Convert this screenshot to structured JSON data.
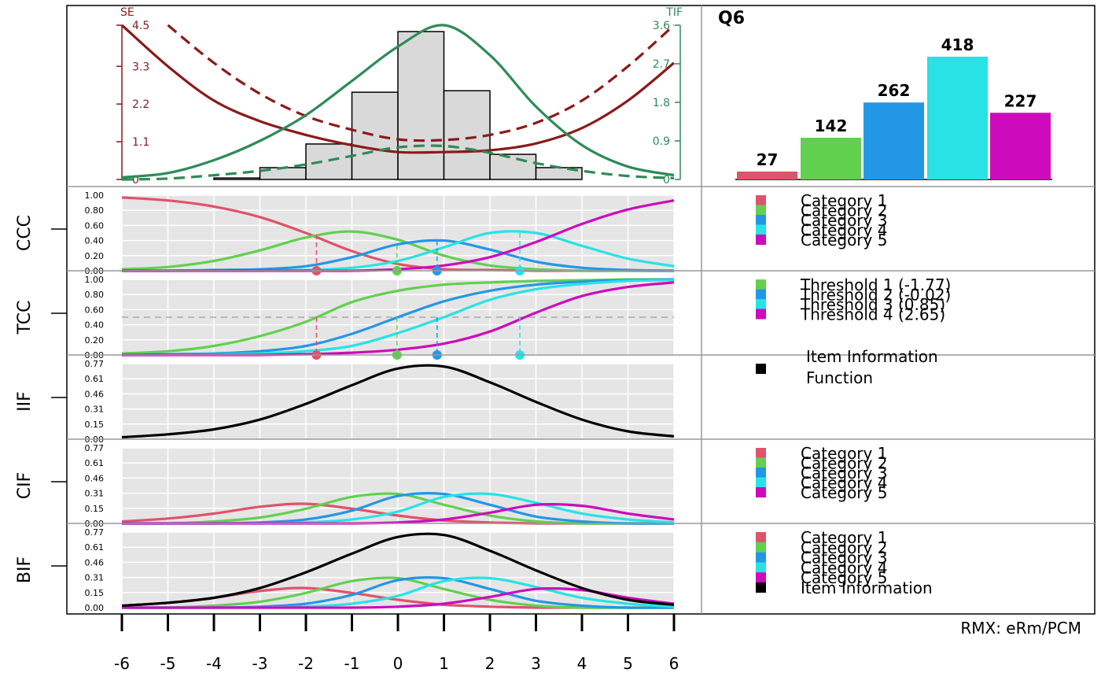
{
  "item_title": "Q6",
  "footer": "RMX: eRm/PCM",
  "colors": {
    "cat1": "#DF536B",
    "cat2": "#61D04F",
    "cat3": "#2297E6",
    "cat4": "#28E2E5",
    "cat5": "#CD0BBC",
    "info": "#000000",
    "se": "#8B1A1A",
    "tif": "#2E8B57",
    "hist_fill": "#D9D9D9",
    "panel_bg": "#E5E5E5"
  },
  "chart_data": [
    {
      "type": "line",
      "id": "top-se-tif",
      "left_axis": {
        "label": "SE",
        "ticks": [
          "0",
          "1.1",
          "2.2",
          "3.3",
          "4.5"
        ],
        "range": [
          0,
          4.5
        ]
      },
      "right_axis": {
        "label": "TIF",
        "ticks": [
          "0",
          "0.9",
          "1.8",
          "2.7",
          "3.6"
        ],
        "range": [
          0,
          3.6
        ]
      },
      "x_range": [
        -6,
        6
      ],
      "histogram": {
        "bins": [
          [
            -4,
            -3
          ],
          [
            -3,
            -2
          ],
          [
            -2,
            -1
          ],
          [
            -1,
            0
          ],
          [
            0,
            1
          ],
          [
            1,
            2
          ],
          [
            2,
            3
          ],
          [
            3,
            4
          ],
          [
            4,
            5
          ]
        ],
        "relative_height": [
          0.01,
          0.08,
          0.24,
          0.59,
          1.0,
          0.6,
          0.17,
          0.08,
          0.0
        ],
        "note_height_axis": "right",
        "max_value": 3.45
      },
      "series": [
        {
          "kind": "se-solid",
          "x": [
            -6,
            -5,
            -4,
            -3,
            -2,
            -1,
            0,
            1,
            2,
            3,
            4,
            5,
            6
          ],
          "y": [
            4.5,
            3.3,
            2.3,
            1.7,
            1.3,
            1.0,
            0.8,
            0.8,
            0.85,
            1.05,
            1.5,
            2.3,
            3.4
          ]
        },
        {
          "kind": "se-dashed",
          "x": [
            -5,
            -4,
            -3,
            -2,
            -1,
            0,
            1,
            2,
            3,
            4,
            5,
            6
          ],
          "y": [
            4.5,
            3.4,
            2.5,
            1.85,
            1.45,
            1.17,
            1.15,
            1.3,
            1.65,
            2.3,
            3.3,
            4.5
          ]
        },
        {
          "kind": "tif-solid",
          "x": [
            -6,
            -5,
            -4,
            -3,
            -2,
            -1,
            0,
            1,
            2,
            3,
            4,
            5,
            6
          ],
          "y": [
            0.05,
            0.15,
            0.45,
            0.9,
            1.5,
            2.3,
            3.1,
            3.6,
            2.9,
            1.7,
            0.8,
            0.3,
            0.1
          ]
        },
        {
          "kind": "tif-dashed",
          "x": [
            -6,
            -5,
            -4,
            -3,
            -2,
            -1,
            0,
            1,
            2,
            3,
            4,
            5,
            6
          ],
          "y": [
            0.0,
            0.02,
            0.1,
            0.2,
            0.35,
            0.55,
            0.75,
            0.78,
            0.62,
            0.38,
            0.2,
            0.08,
            0.03
          ]
        }
      ]
    },
    {
      "type": "bar",
      "id": "category-counts",
      "title": "Q6",
      "categories": [
        "Category 1",
        "Category 2",
        "Category 3",
        "Category 4",
        "Category 5"
      ],
      "values": [
        27,
        142,
        262,
        418,
        227
      ],
      "ylim": [
        0,
        418
      ]
    },
    {
      "type": "line",
      "id": "CCC",
      "label": "CCC",
      "yticks": [
        "1.00",
        "0.80",
        "0.60",
        "0.40",
        "0.20",
        "0.00"
      ],
      "ylim": [
        0,
        1
      ],
      "x": [
        -6,
        -5,
        -4,
        -3,
        -2,
        -1,
        0,
        1,
        2,
        3,
        4,
        5,
        6
      ],
      "series": [
        {
          "name": "Category 1",
          "values": [
            0.97,
            0.93,
            0.85,
            0.71,
            0.5,
            0.26,
            0.09,
            0.02,
            0.01,
            0,
            0,
            0,
            0
          ]
        },
        {
          "name": "Category 2",
          "values": [
            0.02,
            0.05,
            0.13,
            0.27,
            0.44,
            0.52,
            0.41,
            0.2,
            0.07,
            0.02,
            0,
            0,
            0
          ]
        },
        {
          "name": "Category 3",
          "values": [
            0,
            0,
            0.01,
            0.02,
            0.06,
            0.18,
            0.35,
            0.4,
            0.28,
            0.12,
            0.04,
            0.01,
            0
          ]
        },
        {
          "name": "Category 4",
          "values": [
            0,
            0,
            0,
            0,
            0.01,
            0.04,
            0.13,
            0.31,
            0.5,
            0.5,
            0.33,
            0.16,
            0.06
          ]
        },
        {
          "name": "Category 5",
          "values": [
            0,
            0,
            0,
            0,
            0,
            0,
            0.02,
            0.07,
            0.18,
            0.38,
            0.62,
            0.81,
            0.93
          ]
        }
      ],
      "thresholds": [
        -1.77,
        -0.02,
        0.85,
        2.65
      ]
    },
    {
      "type": "line",
      "id": "TCC",
      "label": "TCC",
      "yticks": [
        "1.00",
        "0.80",
        "0.60",
        "0.40",
        "0.20",
        "0.00"
      ],
      "ylim": [
        0,
        1
      ],
      "x": [
        -6,
        -5,
        -4,
        -3,
        -2,
        -1,
        0,
        1,
        2,
        3,
        4,
        5,
        6
      ],
      "series": [
        {
          "name": "Threshold 1 (-1.77)",
          "values": [
            0.02,
            0.05,
            0.12,
            0.25,
            0.44,
            0.7,
            0.85,
            0.93,
            0.96,
            0.98,
            0.99,
            1,
            1
          ]
        },
        {
          "name": "Threshold 2 (-0.02)",
          "values": [
            0,
            0.01,
            0.02,
            0.05,
            0.12,
            0.28,
            0.5,
            0.71,
            0.85,
            0.93,
            0.97,
            0.99,
            1
          ]
        },
        {
          "name": "Threshold 3 (0.85)",
          "values": [
            0,
            0,
            0.01,
            0.02,
            0.05,
            0.12,
            0.29,
            0.5,
            0.73,
            0.87,
            0.94,
            0.98,
            0.99
          ]
        },
        {
          "name": "Threshold 4 (2.65)",
          "values": [
            0,
            0,
            0,
            0,
            0.01,
            0.03,
            0.07,
            0.15,
            0.31,
            0.56,
            0.78,
            0.9,
            0.96
          ]
        }
      ],
      "midline": 0.5,
      "thresholds": [
        -1.77,
        -0.02,
        0.85,
        2.65
      ]
    },
    {
      "type": "line",
      "id": "IIF",
      "label": "IIF",
      "yticks": [
        "0.77",
        "0.61",
        "0.46",
        "0.31",
        "0.15",
        "0.00"
      ],
      "ylim": [
        0,
        0.77
      ],
      "x": [
        -6,
        -5,
        -4,
        -3,
        -2,
        -1,
        0,
        1,
        2,
        3,
        4,
        5,
        6
      ],
      "series": [
        {
          "name": "Item Information Function",
          "values": [
            0.02,
            0.05,
            0.1,
            0.2,
            0.36,
            0.55,
            0.72,
            0.74,
            0.58,
            0.38,
            0.2,
            0.08,
            0.03
          ]
        }
      ]
    },
    {
      "type": "line",
      "id": "CIF",
      "label": "CIF",
      "yticks": [
        "0.77",
        "0.61",
        "0.46",
        "0.31",
        "0.15",
        "0.00"
      ],
      "ylim": [
        0,
        0.77
      ],
      "x": [
        -6,
        -5,
        -4,
        -3,
        -2,
        -1,
        0,
        1,
        2,
        3,
        4,
        5,
        6
      ],
      "series": [
        {
          "name": "Category 1",
          "values": [
            0.02,
            0.05,
            0.1,
            0.17,
            0.2,
            0.15,
            0.08,
            0.03,
            0.01,
            0,
            0,
            0,
            0
          ]
        },
        {
          "name": "Category 2",
          "values": [
            0,
            0,
            0.02,
            0.06,
            0.15,
            0.27,
            0.3,
            0.19,
            0.08,
            0.02,
            0,
            0,
            0
          ]
        },
        {
          "name": "Category 3",
          "values": [
            0,
            0,
            0,
            0.01,
            0.04,
            0.13,
            0.28,
            0.3,
            0.19,
            0.07,
            0.02,
            0,
            0
          ]
        },
        {
          "name": "Category 4",
          "values": [
            0,
            0,
            0,
            0,
            0.01,
            0.04,
            0.12,
            0.27,
            0.3,
            0.21,
            0.1,
            0.04,
            0.01
          ]
        },
        {
          "name": "Category 5",
          "values": [
            0,
            0,
            0,
            0,
            0,
            0,
            0.01,
            0.04,
            0.11,
            0.19,
            0.18,
            0.1,
            0.04
          ]
        }
      ]
    },
    {
      "type": "line",
      "id": "BIF",
      "label": "BIF",
      "yticks": [
        "0.77",
        "0.61",
        "0.46",
        "0.31",
        "0.15",
        "0.00"
      ],
      "ylim": [
        0,
        0.77
      ],
      "x": [
        -6,
        -5,
        -4,
        -3,
        -2,
        -1,
        0,
        1,
        2,
        3,
        4,
        5,
        6
      ],
      "series": [
        {
          "name": "Category 1",
          "values": [
            0.02,
            0.05,
            0.1,
            0.17,
            0.2,
            0.15,
            0.08,
            0.03,
            0.01,
            0,
            0,
            0,
            0
          ]
        },
        {
          "name": "Category 2",
          "values": [
            0,
            0,
            0.02,
            0.06,
            0.15,
            0.27,
            0.3,
            0.19,
            0.08,
            0.02,
            0,
            0,
            0
          ]
        },
        {
          "name": "Category 3",
          "values": [
            0,
            0,
            0,
            0.01,
            0.04,
            0.13,
            0.28,
            0.3,
            0.19,
            0.07,
            0.02,
            0,
            0
          ]
        },
        {
          "name": "Category 4",
          "values": [
            0,
            0,
            0,
            0,
            0.01,
            0.04,
            0.12,
            0.27,
            0.3,
            0.21,
            0.1,
            0.04,
            0.01
          ]
        },
        {
          "name": "Category 5",
          "values": [
            0,
            0,
            0,
            0,
            0,
            0,
            0.01,
            0.04,
            0.11,
            0.19,
            0.18,
            0.1,
            0.04
          ]
        },
        {
          "name": "Item Information",
          "values": [
            0.02,
            0.05,
            0.1,
            0.2,
            0.36,
            0.55,
            0.72,
            0.74,
            0.58,
            0.38,
            0.2,
            0.08,
            0.03
          ]
        }
      ]
    }
  ],
  "x_axis": {
    "ticks": [
      "-6",
      "-5",
      "-4",
      "-3",
      "-2",
      "-1",
      "0",
      "1",
      "2",
      "3",
      "4",
      "5",
      "6"
    ],
    "range": [
      -6,
      6
    ]
  },
  "legends": {
    "ccc": [
      "Category 1",
      "Category 2",
      "Category 3",
      "Category 4",
      "Category 5"
    ],
    "tcc": [
      "Threshold 1 (-1.77)",
      "Threshold 2 (-0.02)",
      "Threshold 3 (0.85)",
      "Threshold 4 (2.65)"
    ],
    "iif": [
      "Item Information",
      "Function"
    ],
    "cif": [
      "Category 1",
      "Category 2",
      "Category 3",
      "Category 4",
      "Category 5"
    ],
    "bif": [
      "Category 1",
      "Category 2",
      "Category 3",
      "Category 4",
      "Category 5",
      "Item Information"
    ]
  }
}
